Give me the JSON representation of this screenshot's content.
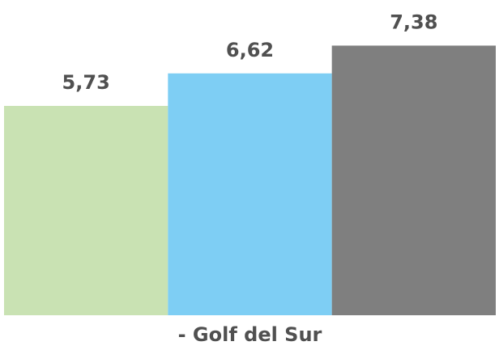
{
  "chart_data": {
    "type": "bar",
    "categories": [
      "- Golf del Sur"
    ],
    "series": [
      {
        "color": "#c9e2b3",
        "values": [
          5.73
        ],
        "value_labels": [
          "5,73"
        ]
      },
      {
        "color": "#7ecef4",
        "values": [
          6.62
        ],
        "value_labels": [
          "6,62"
        ]
      },
      {
        "color": "#7f7f7f",
        "values": [
          7.38
        ],
        "value_labels": [
          "7,38"
        ]
      }
    ]
  }
}
